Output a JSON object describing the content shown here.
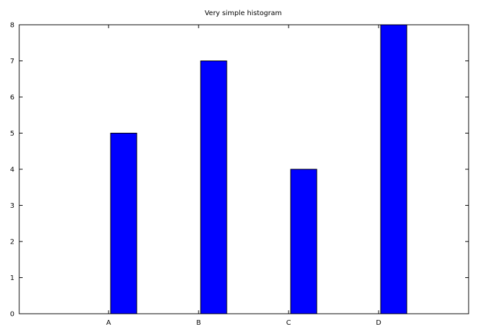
{
  "chart_data": {
    "type": "bar",
    "title": "Very simple histogram",
    "xlabel": "",
    "ylabel": "",
    "categories": [
      "A",
      "B",
      "C",
      "D"
    ],
    "values": [
      5,
      7,
      4,
      8
    ],
    "ylim": [
      0,
      8
    ],
    "yticks": [
      0,
      1,
      2,
      3,
      4,
      5,
      6,
      7,
      8
    ],
    "grid": false,
    "legend": "none",
    "colors": {
      "bar_fill": "#0000ff",
      "bar_stroke": "#000000",
      "axis": "#000000",
      "background": "#ffffff"
    }
  }
}
